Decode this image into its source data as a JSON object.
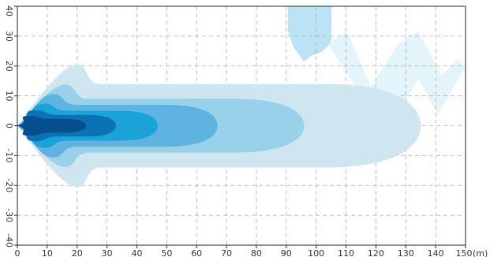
{
  "chart_data": {
    "type": "area",
    "title": "",
    "xlabel": "",
    "ylabel": "",
    "x_unit_label": "(m)",
    "xlim": [
      0,
      150
    ],
    "ylim": [
      -40,
      40
    ],
    "x_ticks": [
      0,
      10,
      20,
      30,
      40,
      50,
      60,
      70,
      80,
      90,
      100,
      110,
      120,
      130,
      140,
      150
    ],
    "x_tick_labels": [
      "0",
      "10",
      "20",
      "30",
      "40",
      "50",
      "60",
      "70",
      "80",
      "90",
      "100",
      "110",
      "120",
      "130",
      "140",
      "150"
    ],
    "y_ticks": [
      -40,
      -30,
      -20,
      -10,
      0,
      10,
      20,
      30,
      40
    ],
    "y_tick_labels": [
      "-40",
      "-30",
      "-20",
      "-10",
      "0",
      "10",
      "20",
      "30",
      "40"
    ],
    "grid": true,
    "legend": "none",
    "series": [
      {
        "reach_m": 135,
        "half_width_m": 14,
        "color": "#cfe6f1",
        "wing_x": 20,
        "wing_w": 6.5
      },
      {
        "reach_m": 96,
        "half_width_m": 9,
        "color": "#99d0ea",
        "wing_x": 16,
        "wing_w": 4.8
      },
      {
        "reach_m": 67,
        "half_width_m": 7,
        "color": "#5fb3e0",
        "wing_x": 12,
        "wing_w": 3.6
      },
      {
        "reach_m": 47,
        "half_width_m": 5,
        "color": "#1aa3d6",
        "wing_x": 9,
        "wing_w": 2.4
      },
      {
        "reach_m": 33,
        "half_width_m": 3.6,
        "color": "#0b73b5",
        "wing_x": 6,
        "wing_w": 1.6
      },
      {
        "reach_m": 23,
        "half_width_m": 2.3,
        "color": "#074e8c",
        "wing_x": 4,
        "wing_w": 1.0
      }
    ],
    "colors": {
      "grid": "#aaaaaa",
      "axis": "#222222",
      "watermark": "#19a7e0"
    }
  }
}
